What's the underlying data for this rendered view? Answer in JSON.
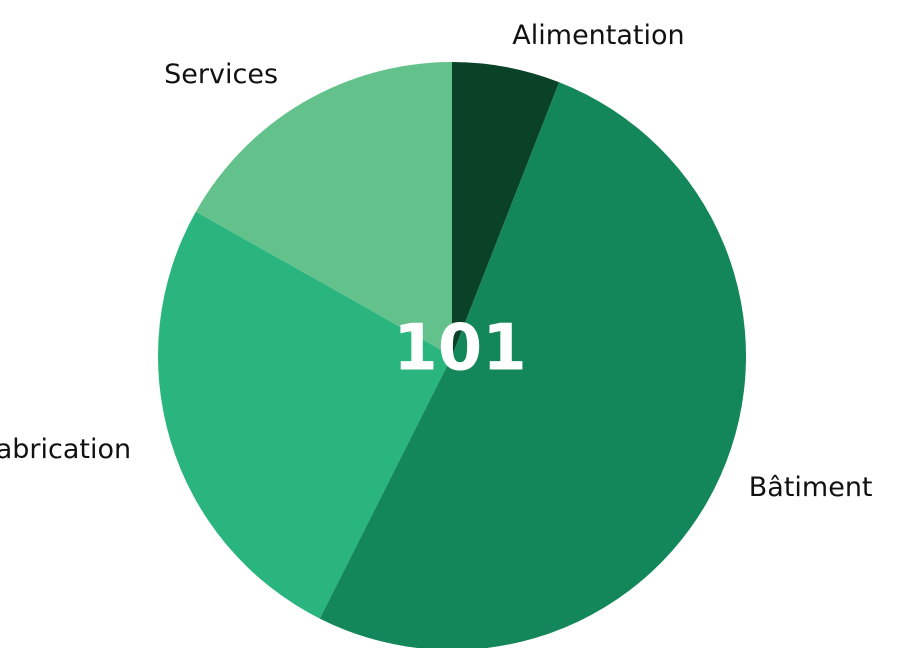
{
  "chart_data": {
    "type": "pie",
    "categories": [
      "Alimentation",
      "Bâtiment",
      "Fabrication",
      "Services"
    ],
    "values": [
      6,
      52,
      26,
      17
    ],
    "colors": [
      "#0a4228",
      "#13865a",
      "#2bb57e",
      "#63c18b"
    ],
    "center_label": "101"
  }
}
